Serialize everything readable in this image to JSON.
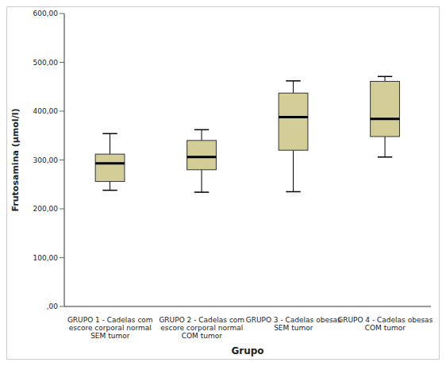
{
  "chart_data": {
    "type": "box",
    "xlabel": "Grupo",
    "ylabel": "Frutosamina (µmol/l)",
    "categories": [
      "GRUPO 1 - Cadelas com escore corporal normal SEM tumor",
      "GRUPO 2 - Cadelas com escore corporal normal COM tumor",
      "GRUPO 3 - Cadelas obesas SEM tumor",
      "GRUPO 4 - Cadelas obesas COM tumor"
    ],
    "values": [
      {
        "min": 238,
        "q1": 256,
        "median": 293,
        "q3": 312,
        "max": 354
      },
      {
        "min": 234,
        "q1": 280,
        "median": 306,
        "q3": 340,
        "max": 362
      },
      {
        "min": 235,
        "q1": 320,
        "median": 388,
        "q3": 437,
        "max": 462
      },
      {
        "min": 306,
        "q1": 348,
        "median": 384,
        "q3": 461,
        "max": 471
      }
    ],
    "color": "#d3cd98",
    "ylim": [
      0,
      600
    ],
    "yticks": [
      {
        "value": 0,
        "label": ",00"
      },
      {
        "value": 100,
        "label": "100,00"
      },
      {
        "value": 200,
        "label": "200,00"
      },
      {
        "value": 300,
        "label": "300,00"
      },
      {
        "value": 400,
        "label": "400,00"
      },
      {
        "value": 500,
        "label": "500,00"
      },
      {
        "value": 600,
        "label": "600,00"
      }
    ],
    "grid": false
  }
}
